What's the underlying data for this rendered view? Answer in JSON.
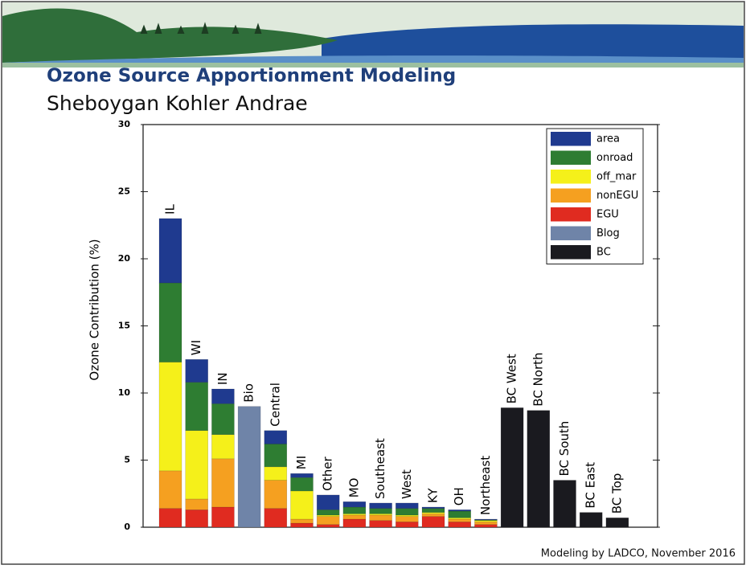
{
  "header": {
    "title": "Ozone Source Apportionment Modeling",
    "subtitle": "Sheboygan Kohler Andrae"
  },
  "footer": "Modeling by LADCO, November 2016",
  "chart_data": {
    "type": "stacked_bar",
    "y_label": "Ozone Contribution (%)",
    "categories": [
      "IL",
      "WI",
      "IN",
      "Bio",
      "Central",
      "MI",
      "Other",
      "MO",
      "Southeast",
      "West",
      "KY",
      "OH",
      "Northeast",
      "BC West",
      "BC North",
      "BC South",
      "BC East",
      "BC Top"
    ],
    "series": [
      {
        "name": "area",
        "color": "#1f3a8f",
        "values": [
          4.8,
          1.7,
          1.1,
          null,
          1.0,
          0.3,
          1.1,
          0.4,
          0.4,
          0.4,
          0.1,
          0.1,
          0.05,
          null,
          null,
          null,
          null,
          null
        ]
      },
      {
        "name": "onroad",
        "color": "#2e7d32",
        "values": [
          5.9,
          3.6,
          2.3,
          null,
          1.7,
          1.0,
          0.4,
          0.5,
          0.4,
          0.5,
          0.3,
          0.5,
          0.05,
          null,
          null,
          null,
          null,
          null
        ]
      },
      {
        "name": "off_mar",
        "color": "#f5f01a",
        "values": [
          8.1,
          5.1,
          1.8,
          null,
          1.0,
          2.1,
          0.1,
          0.1,
          0.1,
          0.1,
          0.1,
          0.1,
          0.1,
          null,
          null,
          null,
          null,
          null
        ]
      },
      {
        "name": "nonEGU",
        "color": "#f5a020",
        "values": [
          2.8,
          0.8,
          3.6,
          null,
          2.1,
          0.3,
          0.6,
          0.3,
          0.4,
          0.4,
          0.2,
          0.2,
          0.2,
          null,
          null,
          null,
          null,
          null
        ]
      },
      {
        "name": "EGU",
        "color": "#e02b20",
        "values": [
          1.4,
          1.3,
          1.5,
          null,
          1.4,
          0.3,
          0.2,
          0.6,
          0.5,
          0.4,
          0.8,
          0.4,
          0.2,
          null,
          null,
          null,
          null,
          null
        ]
      },
      {
        "name": "Blog",
        "color": "#6f84a8",
        "values": [
          null,
          null,
          null,
          9.0,
          null,
          null,
          null,
          null,
          null,
          null,
          null,
          null,
          null,
          null,
          null,
          null,
          null,
          null
        ]
      },
      {
        "name": "BC",
        "color": "#1a1a1f",
        "values": [
          null,
          null,
          null,
          null,
          null,
          null,
          null,
          null,
          null,
          null,
          null,
          null,
          null,
          8.9,
          8.7,
          3.5,
          1.1,
          0.7
        ]
      }
    ],
    "ylim": [
      0,
      30
    ],
    "yticks": [
      0,
      5,
      10,
      15,
      20,
      25,
      30
    ],
    "legend": "upper right"
  }
}
